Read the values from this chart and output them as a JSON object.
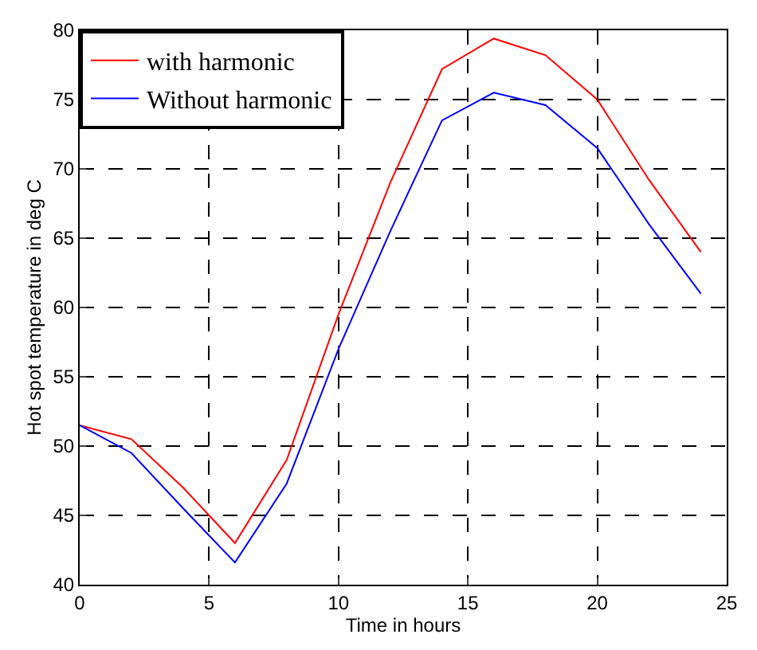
{
  "chart_data": {
    "type": "line",
    "xlabel": "Time in hours",
    "ylabel": "Hot spot temperature in deg C",
    "x": [
      0,
      2,
      4,
      6,
      8,
      10,
      12,
      14,
      16,
      18,
      20,
      22,
      24
    ],
    "series": [
      {
        "name": "with harmonic",
        "color": "#ff0000",
        "values": [
          51.5,
          50.5,
          47,
          43,
          49,
          59.5,
          69,
          77.2,
          79.4,
          78.2,
          75,
          69.2,
          64
        ]
      },
      {
        "name": "Without harmonic",
        "color": "#0000ff",
        "values": [
          51.5,
          49.5,
          45.5,
          41.6,
          47.3,
          57,
          65.5,
          73.5,
          75.5,
          74.6,
          71.5,
          66,
          61
        ]
      }
    ],
    "xlim": [
      0,
      25
    ],
    "xticks": [
      0,
      5,
      10,
      15,
      20,
      25
    ],
    "ylim": [
      40,
      80
    ],
    "yticks": [
      40,
      45,
      50,
      55,
      60,
      65,
      70,
      75,
      80
    ],
    "grid": true,
    "legend": "top left",
    "marker": "none",
    "line_style": "solid"
  }
}
